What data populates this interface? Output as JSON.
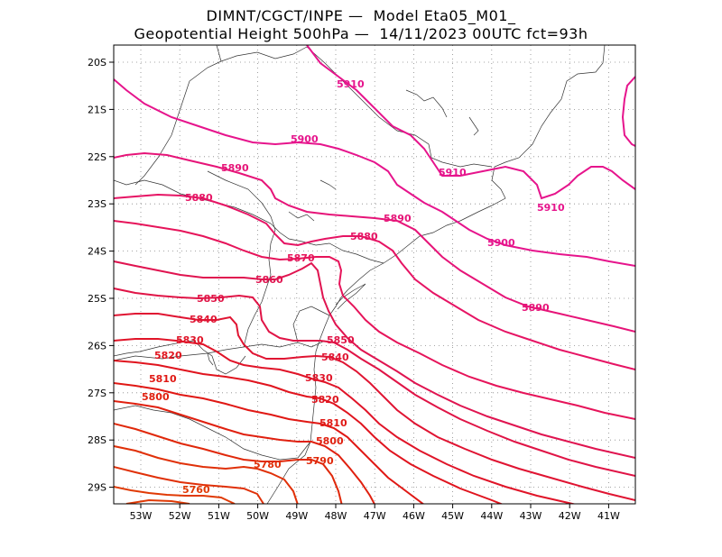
{
  "title": {
    "line1": "DIMNT/CGCT/INPE —  Model Eta05_M01_",
    "line2": "Geopotential Height 500hPa —  14/11/2023 00UTC fct=93h"
  },
  "axes": {
    "lat_labels": [
      "20S",
      "21S",
      "22S",
      "23S",
      "24S",
      "25S",
      "26S",
      "27S",
      "28S",
      "29S"
    ],
    "lon_labels": [
      "53W",
      "52W",
      "51W",
      "50W",
      "49W",
      "48W",
      "47W",
      "46W",
      "45W",
      "44W",
      "43W",
      "42W",
      "41W"
    ]
  },
  "contours": [
    {
      "label": "5910",
      "color": "#e6148c"
    },
    {
      "label": "5910",
      "color": "#e6148c"
    },
    {
      "label": "5910",
      "color": "#e6148c"
    },
    {
      "label": "5900",
      "color": "#e6148c"
    },
    {
      "label": "5900",
      "color": "#e6148c"
    },
    {
      "label": "5890",
      "color": "#e61478"
    },
    {
      "label": "5890",
      "color": "#e61478"
    },
    {
      "label": "5890",
      "color": "#e61478"
    },
    {
      "label": "5880",
      "color": "#e61464"
    },
    {
      "label": "5880",
      "color": "#e61464"
    },
    {
      "label": "5870",
      "color": "#e6145a"
    },
    {
      "label": "5860",
      "color": "#e01450"
    },
    {
      "label": "5850",
      "color": "#e01446"
    },
    {
      "label": "5850",
      "color": "#e01446"
    },
    {
      "label": "5840",
      "color": "#e01432"
    },
    {
      "label": "5840",
      "color": "#e01432"
    },
    {
      "label": "5830",
      "color": "#e01428"
    },
    {
      "label": "5830",
      "color": "#e01428"
    },
    {
      "label": "5820",
      "color": "#e0141e"
    },
    {
      "label": "5820",
      "color": "#e0141e"
    },
    {
      "label": "5810",
      "color": "#e01814"
    },
    {
      "label": "5810",
      "color": "#e01814"
    },
    {
      "label": "5800",
      "color": "#e0200f"
    },
    {
      "label": "5800",
      "color": "#e0200f"
    },
    {
      "label": "5790",
      "color": "#e0280a"
    },
    {
      "label": "5780",
      "color": "#e03008"
    },
    {
      "label": "5760",
      "color": "#e03a05"
    }
  ]
}
